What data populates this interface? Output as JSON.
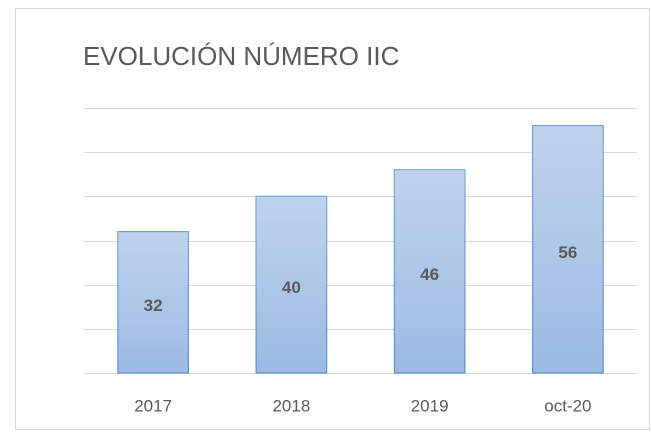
{
  "chart_data": {
    "type": "bar",
    "title": "EVOLUCIÓN NÚMERO IIC",
    "categories": [
      "2017",
      "2018",
      "2019",
      "oct-20"
    ],
    "values": [
      32,
      40,
      46,
      56
    ],
    "color": "#9bbbe3",
    "ylim": [
      0,
      60
    ],
    "yticks": [
      0,
      10,
      20,
      30,
      40,
      50,
      60
    ],
    "grid": true
  }
}
